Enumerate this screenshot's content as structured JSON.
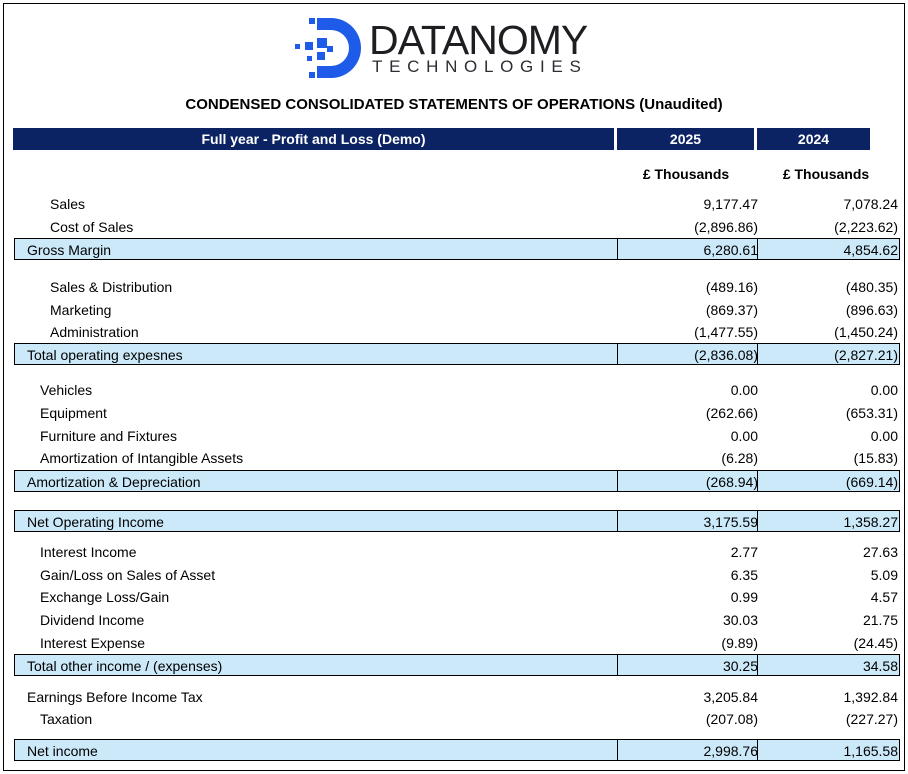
{
  "brand": {
    "name": "DATANOMY",
    "tagline": "TECHNOLOGIES",
    "logo_color": "#1e5be8",
    "icon": "datanomy-d-logo-icon"
  },
  "statement_title": "CONDENSED CONSOLIDATED STATEMENTS OF OPERATIONS (Unaudited)",
  "header": {
    "label": "Full year - Profit and Loss (Demo)",
    "col1": "2025",
    "col2": "2024",
    "color": "#0c2363"
  },
  "units": {
    "col1": "£ Thousands",
    "col2": "£ Thousands"
  },
  "rows": [
    {
      "label": "Sales",
      "v1": "9,177.47",
      "v2": "7,078.24"
    },
    {
      "label": "Cost of Sales",
      "v1": "(2,896.86)",
      "v2": "(2,223.62)"
    },
    {
      "label": "Gross Margin",
      "v1": "6,280.61",
      "v2": "4,854.62"
    },
    {
      "label": "Sales & Distribution",
      "v1": "(489.16)",
      "v2": "(480.35)"
    },
    {
      "label": "Marketing",
      "v1": "(869.37)",
      "v2": "(896.63)"
    },
    {
      "label": "Administration",
      "v1": "(1,477.55)",
      "v2": "(1,450.24)"
    },
    {
      "label": "Total operating expesnes",
      "v1": "(2,836.08)",
      "v2": "(2,827.21)"
    },
    {
      "label": "Vehicles",
      "v1": "0.00",
      "v2": "0.00"
    },
    {
      "label": "Equipment",
      "v1": "(262.66)",
      "v2": "(653.31)"
    },
    {
      "label": "Furniture and Fixtures",
      "v1": "0.00",
      "v2": "0.00"
    },
    {
      "label": "Amortization of Intangible Assets",
      "v1": "(6.28)",
      "v2": "(15.83)"
    },
    {
      "label": "Amortization & Depreciation",
      "v1": "(268.94)",
      "v2": "(669.14)"
    },
    {
      "label": "Net Operating Income",
      "v1": "3,175.59",
      "v2": "1,358.27"
    },
    {
      "label": "Interest Income",
      "v1": "2.77",
      "v2": "27.63"
    },
    {
      "label": "Gain/Loss on Sales of Asset",
      "v1": "6.35",
      "v2": "5.09"
    },
    {
      "label": "Exchange Loss/Gain",
      "v1": "0.99",
      "v2": "4.57"
    },
    {
      "label": "Dividend Income",
      "v1": "30.03",
      "v2": "21.75"
    },
    {
      "label": "Interest Expense",
      "v1": "(9.89)",
      "v2": "(24.45)"
    },
    {
      "label": "Total other income / (expenses)",
      "v1": "30.25",
      "v2": "34.58"
    },
    {
      "label": "Earnings Before Income Tax",
      "v1": "3,205.84",
      "v2": "1,392.84"
    },
    {
      "label": "Taxation",
      "v1": "(207.08)",
      "v2": "(227.27)"
    },
    {
      "label": "Net income",
      "v1": "2,998.76",
      "v2": "1,165.58"
    }
  ]
}
